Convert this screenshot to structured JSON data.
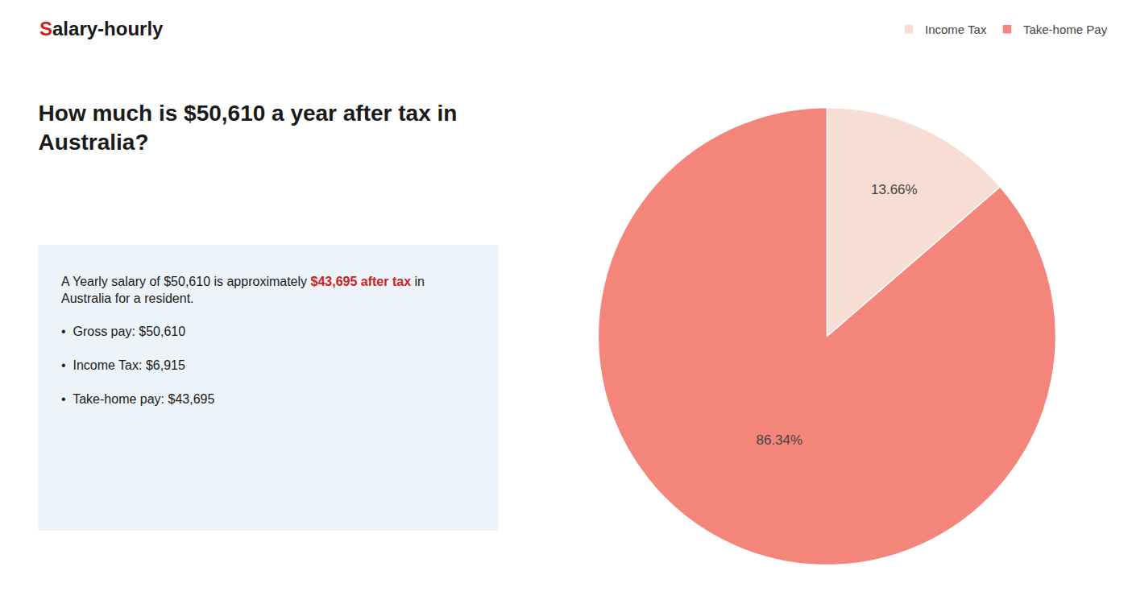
{
  "chart_data": {
    "type": "pie",
    "title": "How much is $50,610 a year after tax in\nAustralia?",
    "categories": [
      "Income Tax",
      "Take-home Pay"
    ],
    "values": [
      13.66,
      86.34
    ],
    "value_labels": [
      "13.66%",
      "86.34%"
    ],
    "colors": [
      "#f7ddd4",
      "#f4857a"
    ],
    "data_labels": true,
    "legend": "upper right",
    "annotations": [
      [
        [
          {
            "text": "S",
            "color": "#cc2222"
          },
          {
            "text": "alary-hourly"
          }
        ]
      ],
      [
        [
          {
            "text": "A Yearly salary of $50,610 is approximately "
          },
          {
            "text": "$43,695 after tax",
            "color": "#cc2222"
          },
          {
            "text": " in"
          }
        ],
        [
          {
            "text": "Australia for a resident."
          }
        ],
        [
          {
            "text": "•  Gross pay: $50,610"
          }
        ],
        [
          {
            "text": "•  Income Tax: $6,915"
          }
        ],
        [
          {
            "text": "•  Take-home pay: $43,695"
          }
        ]
      ]
    ]
  }
}
